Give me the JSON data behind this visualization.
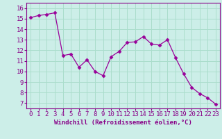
{
  "x": [
    0,
    1,
    2,
    3,
    4,
    5,
    6,
    7,
    8,
    9,
    10,
    11,
    12,
    13,
    14,
    15,
    16,
    17,
    18,
    19,
    20,
    21,
    22,
    23
  ],
  "y": [
    15.1,
    15.3,
    15.4,
    15.55,
    11.5,
    11.65,
    10.4,
    11.1,
    10.0,
    9.6,
    11.4,
    11.9,
    12.75,
    12.8,
    13.3,
    12.6,
    12.5,
    13.0,
    11.3,
    9.8,
    8.5,
    7.9,
    7.5,
    6.9
  ],
  "line_color": "#990099",
  "marker": "D",
  "marker_size": 2.5,
  "bg_color": "#cceee8",
  "grid_color": "#aaddcc",
  "xlabel": "Windchill (Refroidissement éolien,°C)",
  "xlim": [
    -0.5,
    23.5
  ],
  "ylim": [
    6.5,
    16.5
  ],
  "yticks": [
    7,
    8,
    9,
    10,
    11,
    12,
    13,
    14,
    15,
    16
  ],
  "xticks": [
    0,
    1,
    2,
    3,
    4,
    5,
    6,
    7,
    8,
    9,
    10,
    11,
    12,
    13,
    14,
    15,
    16,
    17,
    18,
    19,
    20,
    21,
    22,
    23
  ],
  "tick_label_color": "#880088",
  "axis_color": "#880088",
  "xlabel_color": "#880088",
  "xlabel_fontsize": 6.5,
  "tick_fontsize": 6.5
}
